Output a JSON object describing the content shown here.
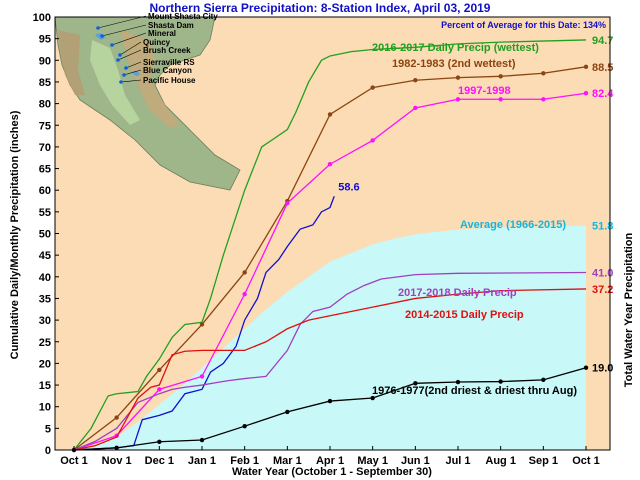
{
  "chart_data": {
    "type": "line",
    "title": "Northern Sierra Precipitation: 8-Station Index, April 03, 2019",
    "subtitle": "Percent of Average for this Date: 134%",
    "xlabel": "Water Year (October 1 - September 30)",
    "ylabel": "Cumulative Daily/Monthly Precipitation (inches)",
    "ylabel_right": "Total Water Year Precipitation",
    "x_categories": [
      "Oct 1",
      "Nov 1",
      "Dec 1",
      "Jan 1",
      "Feb 1",
      "Mar 1",
      "Apr 1",
      "May 1",
      "Jun 1",
      "Jul 1",
      "Aug 1",
      "Sep 1",
      "Oct 1"
    ],
    "ylim": [
      0,
      100
    ],
    "yticks": [
      0,
      5,
      10,
      15,
      20,
      25,
      30,
      35,
      40,
      45,
      50,
      55,
      60,
      65,
      70,
      75,
      80,
      85,
      90,
      95,
      100
    ],
    "colors": {
      "background": "#fbdcb4",
      "plot_border": "#000000",
      "title": "#1010c8",
      "average_fill": "#c8f8f8",
      "wy2017": "#20a020",
      "wy1983": "#8b4513",
      "wy1998": "#ff10ff",
      "wy2019": "#1010d0",
      "wy2018": "#a040c0",
      "wy2015": "#e01010",
      "wy1977": "#000000",
      "average_label": "#10b8e0"
    },
    "map_labels": [
      "Mount Shasta City",
      "Shasta Dam",
      "Mineral",
      "Quincy",
      "Brush Creek",
      "Sierraville RS",
      "Blue Canyon",
      "Pacific House"
    ],
    "series": [
      {
        "key": "average",
        "name": "Average (1966-2015)",
        "end_value": "51.8",
        "kind": "area",
        "points": [
          [
            0,
            0
          ],
          [
            0.5,
            0.8
          ],
          [
            1,
            3
          ],
          [
            1.5,
            6.5
          ],
          [
            2,
            10.5
          ],
          [
            2.5,
            14.5
          ],
          [
            3,
            19
          ],
          [
            3.5,
            23.5
          ],
          [
            4,
            28
          ],
          [
            4.5,
            32.5
          ],
          [
            5,
            36.5
          ],
          [
            5.5,
            40
          ],
          [
            6,
            43.5
          ],
          [
            6.5,
            45.5
          ],
          [
            7,
            47.5
          ],
          [
            7.5,
            48.8
          ],
          [
            8,
            49.8
          ],
          [
            8.5,
            50.4
          ],
          [
            9,
            50.9
          ],
          [
            9.5,
            51.2
          ],
          [
            10,
            51.4
          ],
          [
            11,
            51.6
          ],
          [
            12,
            51.8
          ]
        ]
      },
      {
        "key": "wy2017",
        "name": "2016-2017 Daily Precip (wettest)",
        "end_value": "94.7",
        "kind": "line",
        "points": [
          [
            0,
            0
          ],
          [
            0.4,
            5
          ],
          [
            0.8,
            12.5
          ],
          [
            1,
            13
          ],
          [
            1.5,
            13.5
          ],
          [
            1.7,
            17
          ],
          [
            2,
            21
          ],
          [
            2.3,
            26
          ],
          [
            2.6,
            29
          ],
          [
            3,
            29.5
          ],
          [
            3.2,
            35
          ],
          [
            3.5,
            45
          ],
          [
            3.8,
            54
          ],
          [
            4,
            60
          ],
          [
            4.4,
            70
          ],
          [
            4.7,
            72
          ],
          [
            5,
            74
          ],
          [
            5.2,
            78
          ],
          [
            5.5,
            85
          ],
          [
            5.8,
            90
          ],
          [
            6,
            91
          ],
          [
            6.5,
            92
          ],
          [
            7,
            92.5
          ],
          [
            8,
            93
          ],
          [
            9,
            93.8
          ],
          [
            10,
            94.2
          ],
          [
            12,
            94.7
          ]
        ]
      },
      {
        "key": "wy1983",
        "name": "1982-1983 (2nd wettest)",
        "end_value": "88.5",
        "kind": "marker",
        "points": [
          [
            0,
            0
          ],
          [
            1,
            7.5
          ],
          [
            2,
            18.5
          ],
          [
            3,
            29
          ],
          [
            4,
            41
          ],
          [
            5,
            57.5
          ],
          [
            6,
            77.5
          ],
          [
            7,
            83.7
          ],
          [
            8,
            85.4
          ],
          [
            9,
            86
          ],
          [
            10,
            86.3
          ],
          [
            11,
            87
          ],
          [
            12,
            88.5
          ]
        ]
      },
      {
        "key": "wy1998",
        "name": "1997-1998",
        "end_value": "82.4",
        "kind": "marker",
        "points": [
          [
            0,
            0
          ],
          [
            1,
            3.3
          ],
          [
            2,
            14
          ],
          [
            3,
            17
          ],
          [
            4,
            36
          ],
          [
            5,
            57
          ],
          [
            6,
            66
          ],
          [
            7,
            71.5
          ],
          [
            8,
            79
          ],
          [
            9,
            81
          ],
          [
            10,
            81
          ],
          [
            11,
            81
          ],
          [
            12,
            82.4
          ]
        ]
      },
      {
        "key": "wy2019",
        "name": "",
        "end_value": "58.6",
        "kind": "line",
        "points": [
          [
            0,
            0
          ],
          [
            1,
            0.5
          ],
          [
            1.4,
            1
          ],
          [
            1.6,
            7
          ],
          [
            2,
            8
          ],
          [
            2.3,
            9
          ],
          [
            2.6,
            13
          ],
          [
            3,
            14
          ],
          [
            3.2,
            18
          ],
          [
            3.5,
            20
          ],
          [
            3.8,
            24
          ],
          [
            4,
            30
          ],
          [
            4.3,
            35
          ],
          [
            4.5,
            41
          ],
          [
            4.8,
            44
          ],
          [
            5,
            47
          ],
          [
            5.3,
            51
          ],
          [
            5.6,
            52
          ],
          [
            5.8,
            55
          ],
          [
            6,
            56
          ],
          [
            6.1,
            58.6
          ]
        ]
      },
      {
        "key": "wy2018",
        "name": "2017-2018 Daily Precip",
        "end_value": "41.0",
        "kind": "line",
        "points": [
          [
            0,
            0
          ],
          [
            0.5,
            2
          ],
          [
            1,
            5
          ],
          [
            1.5,
            11
          ],
          [
            2,
            13
          ],
          [
            2.3,
            14
          ],
          [
            2.6,
            14.5
          ],
          [
            3,
            15
          ],
          [
            3.3,
            15.5
          ],
          [
            3.6,
            16
          ],
          [
            4,
            16.5
          ],
          [
            4.5,
            17
          ],
          [
            5,
            23
          ],
          [
            5.3,
            29
          ],
          [
            5.6,
            32
          ],
          [
            6,
            33
          ],
          [
            6.4,
            36
          ],
          [
            6.8,
            38
          ],
          [
            7.2,
            39.5
          ],
          [
            8,
            40.5
          ],
          [
            9,
            40.8
          ],
          [
            12,
            41
          ]
        ]
      },
      {
        "key": "wy2015",
        "name": "2014-2015 Daily Precip",
        "end_value": "37.2",
        "kind": "line",
        "points": [
          [
            0,
            0
          ],
          [
            0.5,
            1
          ],
          [
            1,
            3
          ],
          [
            1.5,
            12
          ],
          [
            1.8,
            14.5
          ],
          [
            2,
            15
          ],
          [
            2.3,
            22
          ],
          [
            2.6,
            22.8
          ],
          [
            3,
            23
          ],
          [
            4,
            23
          ],
          [
            4.5,
            25
          ],
          [
            5,
            28
          ],
          [
            5.5,
            30
          ],
          [
            6,
            31
          ],
          [
            7,
            33
          ],
          [
            8,
            35
          ],
          [
            9,
            36
          ],
          [
            10,
            36.8
          ],
          [
            12,
            37.2
          ]
        ]
      },
      {
        "key": "wy1977",
        "name": "1976-1977(2nd driest & driest thru Aug)",
        "end_value": "19.0",
        "kind": "marker",
        "points": [
          [
            0,
            0
          ],
          [
            1,
            0.5
          ],
          [
            2,
            1.9
          ],
          [
            3,
            2.3
          ],
          [
            4,
            5.5
          ],
          [
            5,
            8.8
          ],
          [
            6,
            11.3
          ],
          [
            7,
            12
          ],
          [
            8,
            15.4
          ],
          [
            9,
            15.7
          ],
          [
            10,
            15.8
          ],
          [
            11,
            16.2
          ],
          [
            12,
            19
          ]
        ]
      }
    ]
  }
}
